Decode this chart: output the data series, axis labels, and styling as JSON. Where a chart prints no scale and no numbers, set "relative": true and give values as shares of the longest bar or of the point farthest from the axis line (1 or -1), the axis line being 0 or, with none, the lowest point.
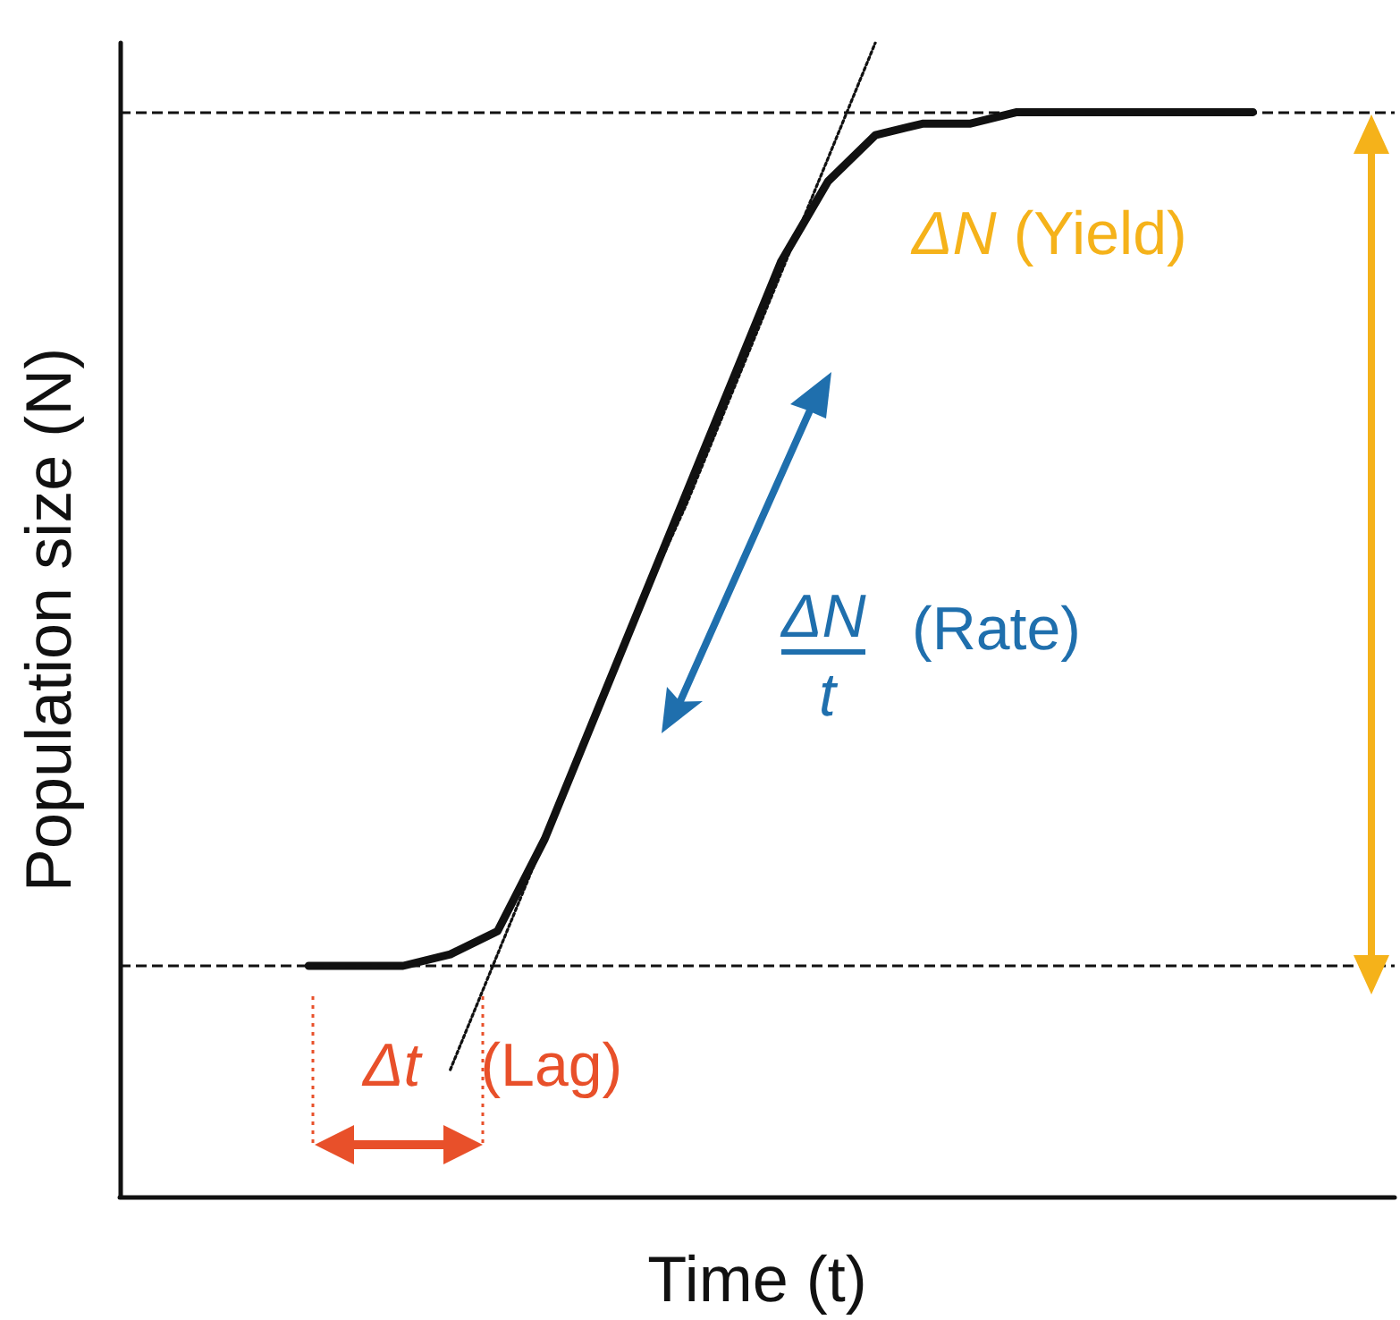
{
  "chart_data": {
    "type": "line",
    "relative": true,
    "xlabel": "Time (t)",
    "ylabel": "Population size (N)",
    "marker": "none",
    "categories": [
      null,
      null,
      null,
      null,
      null,
      null,
      null,
      null,
      null,
      null,
      null,
      null,
      null,
      null,
      null,
      null,
      null,
      null,
      null,
      null,
      null,
      null,
      null,
      null,
      null,
      null,
      null,
      null
    ],
    "series": [
      {
        "color": "#111111",
        "line_style": "solid",
        "values": [
          null,
          null,
          null,
          null,
          0.2,
          0.2,
          0.2,
          0.21,
          0.23,
          0.31,
          0.41,
          0.51,
          0.61,
          0.71,
          0.81,
          0.88,
          0.92,
          0.93,
          0.93,
          0.94,
          0.94,
          0.94,
          0.94,
          0.94,
          0.94,
          null,
          null,
          null
        ]
      },
      {
        "color": "#111111",
        "line_style": "dotted",
        "values": [
          null,
          null,
          null,
          null,
          null,
          null,
          null,
          0.11,
          0.21,
          0.31,
          0.41,
          0.51,
          0.6,
          0.7,
          0.8,
          0.9,
          1,
          null,
          null,
          null,
          null,
          null,
          null,
          null,
          null,
          null,
          null,
          null
        ]
      }
    ],
    "ref_lines": [
      {
        "axis": "y",
        "value": 0.94,
        "line_style": "dashed",
        "color": "#111111"
      },
      {
        "axis": "y",
        "value": 0.2,
        "line_style": "dashed",
        "color": "#111111"
      }
    ],
    "annotations": [
      "ΔN (Yield)",
      "ΔN",
      "t",
      "(Rate)",
      "Δt (Lag)"
    ]
  }
}
